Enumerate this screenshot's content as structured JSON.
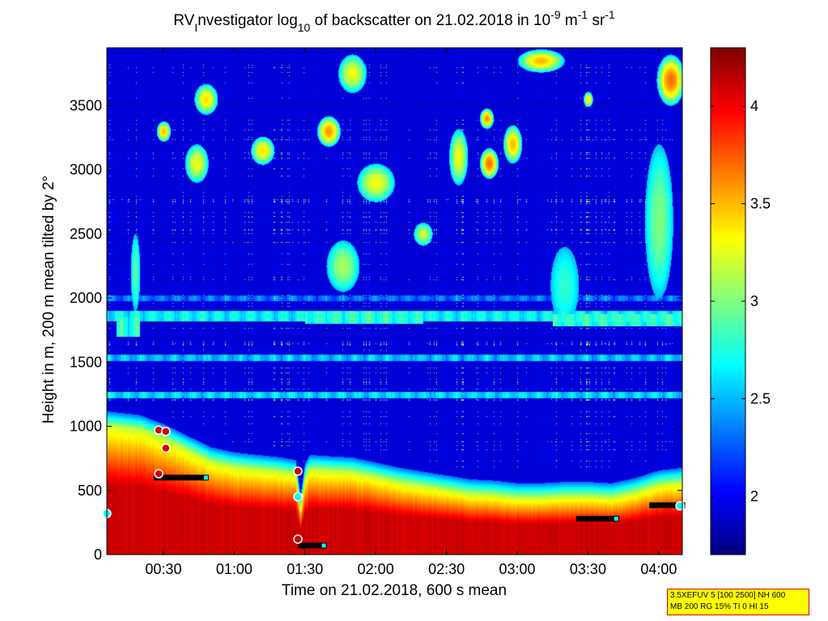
{
  "chart_data": {
    "type": "heatmap",
    "title": {
      "prefix": "RV",
      "sub1": "I",
      "middle": "nvestigator log",
      "sub2": "10",
      "after": " of backscatter on 21.02.2018 in 10",
      "sup1": "-9",
      "unit_m": " m",
      "sup2": "-1",
      "unit_sr": " sr",
      "sup3": "-1"
    },
    "xlabel": "Time on 21.02.2018, 600 s mean",
    "ylabel": "Height in m, 200 m mean tilted by 2°",
    "xlim_minutes": [
      6,
      250
    ],
    "ylim": [
      0,
      3950
    ],
    "x_ticks": [
      {
        "value": 30,
        "label": "00:30"
      },
      {
        "value": 60,
        "label": "01:00"
      },
      {
        "value": 90,
        "label": "01:30"
      },
      {
        "value": 120,
        "label": "02:00"
      },
      {
        "value": 150,
        "label": "02:30"
      },
      {
        "value": 180,
        "label": "03:00"
      },
      {
        "value": 210,
        "label": "03:30"
      },
      {
        "value": 240,
        "label": "04:00"
      }
    ],
    "y_ticks": [
      {
        "value": 0,
        "label": "0"
      },
      {
        "value": 500,
        "label": "500"
      },
      {
        "value": 1000,
        "label": "1000"
      },
      {
        "value": 1500,
        "label": "1500"
      },
      {
        "value": 2000,
        "label": "2000"
      },
      {
        "value": 2500,
        "label": "2500"
      },
      {
        "value": 3000,
        "label": "3000"
      },
      {
        "value": 3500,
        "label": "3500"
      }
    ],
    "colorbar": {
      "range": [
        1.7,
        4.3
      ],
      "ticks": [
        {
          "value": 2,
          "label": "2"
        },
        {
          "value": 2.5,
          "label": "2.5"
        },
        {
          "value": 3,
          "label": "3"
        },
        {
          "value": 3.5,
          "label": "3.5"
        },
        {
          "value": 4,
          "label": "4"
        }
      ],
      "colormap": "jet"
    },
    "boundary_layer_top_m": [
      [
        6,
        1000
      ],
      [
        20,
        970
      ],
      [
        30,
        900
      ],
      [
        40,
        810
      ],
      [
        50,
        720
      ],
      [
        60,
        680
      ],
      [
        70,
        660
      ],
      [
        80,
        640
      ],
      [
        86,
        620
      ],
      [
        88,
        350
      ],
      [
        90,
        600
      ],
      [
        92,
        660
      ],
      [
        100,
        650
      ],
      [
        110,
        640
      ],
      [
        120,
        600
      ],
      [
        130,
        560
      ],
      [
        140,
        530
      ],
      [
        150,
        500
      ],
      [
        160,
        470
      ],
      [
        170,
        460
      ],
      [
        180,
        440
      ],
      [
        190,
        440
      ],
      [
        200,
        450
      ],
      [
        210,
        450
      ],
      [
        220,
        440
      ],
      [
        230,
        480
      ],
      [
        240,
        540
      ],
      [
        250,
        560
      ]
    ],
    "aerosol_layers": [
      {
        "t0": 6,
        "t1": 250,
        "h0": 1220,
        "h1": 1270,
        "level": 2.8
      },
      {
        "t0": 6,
        "t1": 250,
        "h0": 1510,
        "h1": 1560,
        "level": 2.75
      },
      {
        "t0": 6,
        "t1": 250,
        "h0": 1820,
        "h1": 1900,
        "level": 2.9
      },
      {
        "t0": 6,
        "t1": 250,
        "h0": 1980,
        "h1": 2020,
        "level": 2.55
      },
      {
        "t0": 10,
        "t1": 20,
        "h0": 1700,
        "h1": 1850,
        "level": 3.0
      },
      {
        "t0": 90,
        "t1": 140,
        "h0": 1800,
        "h1": 1900,
        "level": 3.0
      },
      {
        "t0": 195,
        "t1": 250,
        "h0": 1780,
        "h1": 1880,
        "level": 3.0
      }
    ],
    "aerosol_patches": [
      {
        "t": 30,
        "h": 3300,
        "rt": 3,
        "rh": 80,
        "v": 3.5
      },
      {
        "t": 48,
        "h": 3550,
        "rt": 5,
        "rh": 120,
        "v": 3.4
      },
      {
        "t": 44,
        "h": 3050,
        "rt": 5,
        "rh": 150,
        "v": 3.3
      },
      {
        "t": 72,
        "h": 3150,
        "rt": 5,
        "rh": 110,
        "v": 3.4
      },
      {
        "t": 100,
        "h": 3300,
        "rt": 5,
        "rh": 120,
        "v": 3.6
      },
      {
        "t": 120,
        "h": 2900,
        "rt": 8,
        "rh": 150,
        "v": 3.3
      },
      {
        "t": 106,
        "h": 2250,
        "rt": 7,
        "rh": 200,
        "v": 3.1
      },
      {
        "t": 155,
        "h": 3100,
        "rt": 4,
        "rh": 220,
        "v": 3.3
      },
      {
        "t": 168,
        "h": 3050,
        "rt": 4,
        "rh": 120,
        "v": 3.7
      },
      {
        "t": 178,
        "h": 3200,
        "rt": 4,
        "rh": 150,
        "v": 3.5
      },
      {
        "t": 167,
        "h": 3400,
        "rt": 3,
        "rh": 80,
        "v": 3.6
      },
      {
        "t": 190,
        "h": 3850,
        "rt": 10,
        "rh": 90,
        "v": 3.5
      },
      {
        "t": 245,
        "h": 3700,
        "rt": 6,
        "rh": 200,
        "v": 3.7
      },
      {
        "t": 240,
        "h": 2600,
        "rt": 6,
        "rh": 600,
        "v": 3.0
      },
      {
        "t": 18,
        "h": 2200,
        "rt": 2,
        "rh": 300,
        "v": 2.9
      },
      {
        "t": 200,
        "h": 2100,
        "rt": 6,
        "rh": 300,
        "v": 2.8
      },
      {
        "t": 110,
        "h": 3750,
        "rt": 6,
        "rh": 150,
        "v": 3.3
      },
      {
        "t": 210,
        "h": 3550,
        "rt": 2,
        "rh": 60,
        "v": 3.4
      },
      {
        "t": 140,
        "h": 2500,
        "rt": 4,
        "rh": 90,
        "v": 3.2
      }
    ],
    "cloud_markers_m": [
      {
        "t": 28,
        "h": 970,
        "c": "#d00000"
      },
      {
        "t": 31,
        "h": 960,
        "c": "#d00000"
      },
      {
        "t": 31,
        "h": 830,
        "c": "#d00000"
      },
      {
        "t": 28,
        "h": 630,
        "c": "#d00000"
      },
      {
        "t": 87,
        "h": 650,
        "c": "#d00000"
      },
      {
        "t": 87,
        "h": 450,
        "c": "#00ffff"
      },
      {
        "t": 87,
        "h": 120,
        "c": "#d00000"
      },
      {
        "t": 6,
        "h": 320,
        "c": "#00ffff"
      },
      {
        "t": 249,
        "h": 380,
        "c": "#00ffff"
      }
    ],
    "mixing_segments_m": [
      {
        "t0": 26,
        "t1": 48,
        "h": 600
      },
      {
        "t0": 87,
        "t1": 98,
        "h": 70
      },
      {
        "t0": 205,
        "t1": 222,
        "h": 280
      },
      {
        "t0": 236,
        "t1": 250,
        "h": 385
      }
    ]
  },
  "info_box": {
    "line1": "3.5XEFUV 5 [100 2500] NH 600",
    "line2": "MB 200 RG 15% TI 0 HI 15"
  }
}
